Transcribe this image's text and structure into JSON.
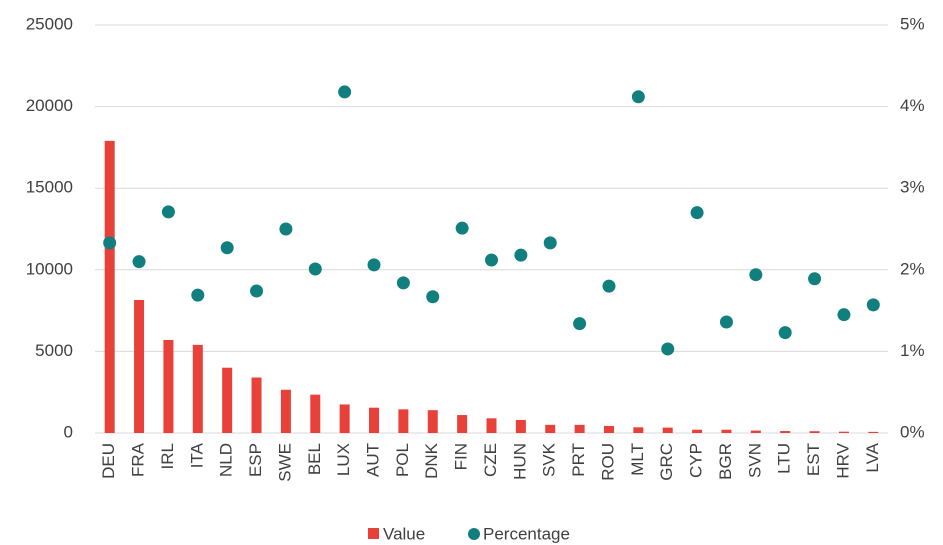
{
  "chart_data": {
    "type": "bar",
    "categories": [
      "DEU",
      "FRA",
      "IRL",
      "ITA",
      "NLD",
      "ESP",
      "SWE",
      "BEL",
      "LUX",
      "AUT",
      "POL",
      "DNK",
      "FIN",
      "CZE",
      "HUN",
      "SVK",
      "PRT",
      "ROU",
      "MLT",
      "GRC",
      "CYP",
      "BGR",
      "SVN",
      "LTU",
      "EST",
      "HRV",
      "LVA"
    ],
    "series": [
      {
        "name": "Value",
        "type": "bar",
        "color": "#e8413a",
        "axis": "y",
        "values": [
          17900,
          8150,
          5700,
          5400,
          4000,
          3400,
          2650,
          2350,
          1750,
          1550,
          1450,
          1400,
          1100,
          900,
          800,
          500,
          500,
          430,
          350,
          330,
          200,
          200,
          150,
          120,
          110,
          80,
          70
        ]
      },
      {
        "name": "Percentage",
        "type": "scatter",
        "color": "#127f7f",
        "axis": "y2",
        "values": [
          2.33,
          2.1,
          2.71,
          1.69,
          2.27,
          1.74,
          2.5,
          2.01,
          4.18,
          2.06,
          1.84,
          1.67,
          2.51,
          2.12,
          2.18,
          2.33,
          1.34,
          1.8,
          4.12,
          1.03,
          2.7,
          1.36,
          1.94,
          1.23,
          1.89,
          1.45,
          1.57
        ]
      }
    ],
    "ylim": [
      0,
      25000
    ],
    "yticks": [
      0,
      5000,
      10000,
      15000,
      20000,
      25000
    ],
    "y2lim": [
      0,
      5
    ],
    "y2ticks": [
      {
        "value": 0,
        "label": "0%"
      },
      {
        "value": 1,
        "label": "1%"
      },
      {
        "value": 2,
        "label": "2%"
      },
      {
        "value": 3,
        "label": "3%"
      },
      {
        "value": 4,
        "label": "4%"
      },
      {
        "value": 5,
        "label": "5%"
      }
    ],
    "grid": true,
    "legend": "bottom"
  }
}
